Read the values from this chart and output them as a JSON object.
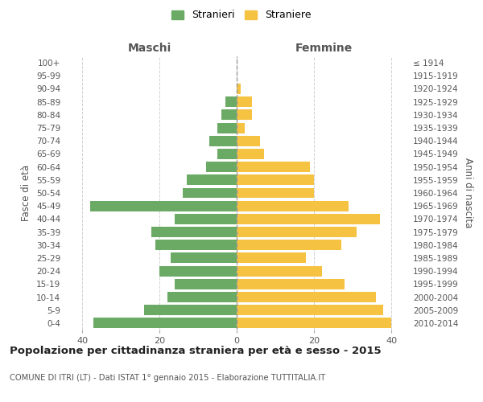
{
  "age_groups": [
    "0-4",
    "5-9",
    "10-14",
    "15-19",
    "20-24",
    "25-29",
    "30-34",
    "35-39",
    "40-44",
    "45-49",
    "50-54",
    "55-59",
    "60-64",
    "65-69",
    "70-74",
    "75-79",
    "80-84",
    "85-89",
    "90-94",
    "95-99",
    "100+"
  ],
  "birth_years": [
    "2010-2014",
    "2005-2009",
    "2000-2004",
    "1995-1999",
    "1990-1994",
    "1985-1989",
    "1980-1984",
    "1975-1979",
    "1970-1974",
    "1965-1969",
    "1960-1964",
    "1955-1959",
    "1950-1954",
    "1945-1949",
    "1940-1944",
    "1935-1939",
    "1930-1934",
    "1925-1929",
    "1920-1924",
    "1915-1919",
    "≤ 1914"
  ],
  "males": [
    37,
    24,
    18,
    16,
    20,
    17,
    21,
    22,
    16,
    38,
    14,
    13,
    8,
    5,
    7,
    5,
    4,
    3,
    0,
    0,
    0
  ],
  "females": [
    40,
    38,
    36,
    28,
    22,
    18,
    27,
    31,
    37,
    29,
    20,
    20,
    19,
    7,
    6,
    2,
    4,
    4,
    1,
    0,
    0
  ],
  "male_color": "#6aaa64",
  "female_color": "#f5c242",
  "title": "Popolazione per cittadinanza straniera per età e sesso - 2015",
  "subtitle": "COMUNE DI ITRI (LT) - Dati ISTAT 1° gennaio 2015 - Elaborazione TUTTITALIA.IT",
  "xlabel_left": "Maschi",
  "xlabel_right": "Femmine",
  "ylabel_left": "Fasce di età",
  "ylabel_right": "Anni di nascita",
  "legend_male": "Stranieri",
  "legend_female": "Straniere",
  "xlim": 45,
  "background_color": "#ffffff",
  "grid_color": "#d0d0d0"
}
